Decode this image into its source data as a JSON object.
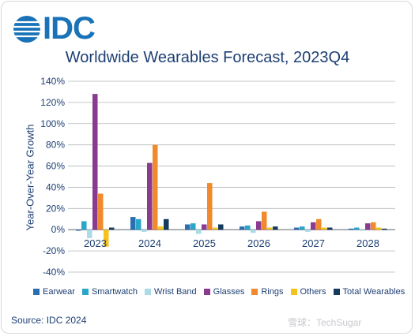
{
  "header": {
    "logo_text": "IDC"
  },
  "chart_data": {
    "type": "bar",
    "title": "Worldwide Wearables Forecast, 2023Q4",
    "xlabel": "",
    "ylabel": "Year-Over-Year Growth",
    "categories": [
      "2023",
      "2024",
      "2025",
      "2026",
      "2027",
      "2028"
    ],
    "ylim": [
      -40,
      140
    ],
    "yticks": [
      "-40%",
      "-20%",
      "0%",
      "20%",
      "40%",
      "60%",
      "80%",
      "100%",
      "120%",
      "140%"
    ],
    "ytick_values": [
      -40,
      -20,
      0,
      20,
      40,
      60,
      80,
      100,
      120,
      140
    ],
    "grid": true,
    "legend_position": "bottom",
    "series": [
      {
        "name": "Earwear",
        "color": "#2a6fb0",
        "values": [
          -1,
          12,
          5,
          3,
          2,
          1
        ]
      },
      {
        "name": "Smartwatch",
        "color": "#2aa6c8",
        "values": [
          8,
          10,
          6,
          4,
          3,
          2
        ]
      },
      {
        "name": "Wrist Band",
        "color": "#a9dbe9",
        "values": [
          -8,
          -2,
          -4,
          -3,
          -2,
          -1
        ]
      },
      {
        "name": "Glasses",
        "color": "#8a3a8f",
        "values": [
          128,
          63,
          5,
          8,
          7,
          6
        ]
      },
      {
        "name": "Rings",
        "color": "#f08a2c",
        "values": [
          34,
          80,
          44,
          17,
          10,
          7
        ]
      },
      {
        "name": "Others",
        "color": "#f6c21c",
        "values": [
          -16,
          3,
          2,
          2,
          2,
          2
        ]
      },
      {
        "name": "Total Wearables",
        "color": "#143a5e",
        "values": [
          2,
          10,
          5,
          3,
          2,
          1
        ]
      }
    ]
  },
  "footer": {
    "source": "Source: IDC 2024",
    "watermark": "雪球：TechSugar"
  }
}
